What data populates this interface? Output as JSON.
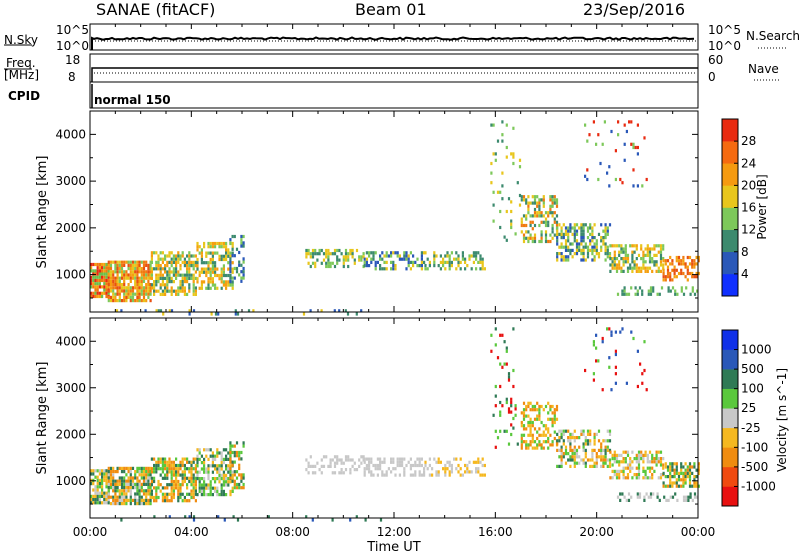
{
  "header": {
    "station": "SANAE (fitACF)",
    "beam": "Beam 01",
    "date": "23/Sep/2016"
  },
  "aux_panels": {
    "nsky_label": "N.Sky",
    "nsearch_label": "N.Search",
    "nsky_ticks": [
      "10^5",
      "10^0"
    ],
    "nsearch_ticks": [
      "10^5",
      "10^0"
    ],
    "freq_label": "Freq.",
    "freq_unit": "[MHz]",
    "freq_ticks": [
      "18",
      "8"
    ],
    "nave_label": "Nave",
    "nave_ticks": [
      "60",
      "0"
    ],
    "cpid_label": "CPID",
    "cpid_value": "normal 150"
  },
  "chart_data": [
    {
      "type": "heatmap",
      "panel": "power",
      "ylabel": "Slant Range [km]",
      "xlabel": "",
      "colorbar_label": "Power [dB]",
      "colorbar_ticks": [
        "4",
        "8",
        "12",
        "16",
        "20",
        "24",
        "28"
      ],
      "colorbar_colors": [
        "#1030ff",
        "#2a58b8",
        "#3c8a6e",
        "#7dc85a",
        "#e8c61c",
        "#f59a10",
        "#f56a10",
        "#e82a10"
      ],
      "yticks": [
        "1000",
        "2000",
        "3000",
        "4000"
      ],
      "ylim": [
        200,
        4500
      ],
      "xlim": [
        0,
        24
      ],
      "blobs": [
        {
          "x0": 0.0,
          "x1": 0.7,
          "y0": 500,
          "y1": 1250,
          "colors": [
            "#f07a10",
            "#e82a10",
            "#f5a010",
            "#6dc04a"
          ],
          "density": 0.9
        },
        {
          "x0": 0.7,
          "x1": 2.4,
          "y0": 450,
          "y1": 1300,
          "colors": [
            "#f07a10",
            "#e85010",
            "#f5a010",
            "#7dc85a",
            "#e8c61c"
          ],
          "density": 0.85
        },
        {
          "x0": 2.4,
          "x1": 4.2,
          "y0": 550,
          "y1": 1500,
          "colors": [
            "#f5a010",
            "#7dc85a",
            "#e8c61c",
            "#3c8a6e"
          ],
          "density": 0.65
        },
        {
          "x0": 4.2,
          "x1": 5.6,
          "y0": 700,
          "y1": 1700,
          "colors": [
            "#7dc85a",
            "#e8c61c",
            "#3c8a6e",
            "#f5a010"
          ],
          "density": 0.6
        },
        {
          "x0": 5.5,
          "x1": 6.1,
          "y0": 850,
          "y1": 1850,
          "colors": [
            "#3c8a6e",
            "#2a58b8",
            "#7dc85a"
          ],
          "density": 0.45
        },
        {
          "x0": 8.5,
          "x1": 10.8,
          "y0": 1150,
          "y1": 1550,
          "colors": [
            "#7dc85a",
            "#e8c61c",
            "#3c8a6e"
          ],
          "density": 0.45
        },
        {
          "x0": 10.8,
          "x1": 13.2,
          "y0": 1100,
          "y1": 1500,
          "colors": [
            "#7dc85a",
            "#e8c61c",
            "#3c8a6e",
            "#2a58b8"
          ],
          "density": 0.5
        },
        {
          "x0": 13.2,
          "x1": 15.6,
          "y0": 1100,
          "y1": 1500,
          "colors": [
            "#7dc85a",
            "#3c8a6e",
            "#e8c61c"
          ],
          "density": 0.45
        },
        {
          "x0": 15.8,
          "x1": 17.0,
          "y0": 1700,
          "y1": 4300,
          "colors": [
            "#7dc85a",
            "#3c8a6e",
            "#e8c61c"
          ],
          "density": 0.08
        },
        {
          "x0": 17.0,
          "x1": 18.4,
          "y0": 1700,
          "y1": 2700,
          "colors": [
            "#f07a10",
            "#e8c61c",
            "#7dc85a",
            "#3c8a6e"
          ],
          "density": 0.5
        },
        {
          "x0": 18.4,
          "x1": 20.5,
          "y0": 1300,
          "y1": 2100,
          "colors": [
            "#7dc85a",
            "#3c8a6e",
            "#e8c61c",
            "#2a58b8"
          ],
          "density": 0.55
        },
        {
          "x0": 20.5,
          "x1": 22.6,
          "y0": 1050,
          "y1": 1650,
          "colors": [
            "#f5a010",
            "#e8c61c",
            "#7dc85a",
            "#3c8a6e"
          ],
          "density": 0.55
        },
        {
          "x0": 22.6,
          "x1": 24.0,
          "y0": 900,
          "y1": 1400,
          "colors": [
            "#f07a10",
            "#e85010",
            "#f5a010"
          ],
          "density": 0.55
        },
        {
          "x0": 19.5,
          "x1": 22.0,
          "y0": 2900,
          "y1": 4300,
          "colors": [
            "#7dc85a",
            "#e82a10",
            "#2a58b8"
          ],
          "density": 0.05
        },
        {
          "x0": 20.8,
          "x1": 24.0,
          "y0": 550,
          "y1": 750,
          "colors": [
            "#7dc85a",
            "#3c8a6e"
          ],
          "density": 0.3
        },
        {
          "x0": 0.5,
          "x1": 11.5,
          "y0": 180,
          "y1": 260,
          "colors": [
            "#2a58b8",
            "#3c8a6e",
            "#e8c61c"
          ],
          "density": 0.08
        }
      ]
    },
    {
      "type": "heatmap",
      "panel": "velocity",
      "ylabel": "Slant Range [km]",
      "xlabel": "Time UT",
      "colorbar_label": "Velocity [m s^-1]",
      "colorbar_ticks": [
        "-1000",
        "-500",
        "-100",
        "-25",
        "25",
        "100",
        "500",
        "1000"
      ],
      "colorbar_colors": [
        "#e81010",
        "#f04a10",
        "#f08c10",
        "#f5b820",
        "#c8c8c8",
        "#5ac83c",
        "#2f7a55",
        "#2a58b8",
        "#1030e8"
      ],
      "yticks": [
        "1000",
        "2000",
        "3000",
        "4000"
      ],
      "xticks": [
        "00:00",
        "04:00",
        "08:00",
        "12:00",
        "16:00",
        "20:00",
        "00:00"
      ],
      "ylim": [
        200,
        4500
      ],
      "xlim": [
        0,
        24
      ],
      "blobs": [
        {
          "x0": 0.0,
          "x1": 0.7,
          "y0": 550,
          "y1": 1250,
          "colors": [
            "#c8c8c8",
            "#f5b820",
            "#5ac83c",
            "#2f7a55"
          ],
          "density": 0.85
        },
        {
          "x0": 0.7,
          "x1": 2.4,
          "y0": 500,
          "y1": 1300,
          "colors": [
            "#f08c10",
            "#f5b820",
            "#5ac83c",
            "#c8c8c8",
            "#2f7a55"
          ],
          "density": 0.8
        },
        {
          "x0": 2.4,
          "x1": 4.2,
          "y0": 550,
          "y1": 1500,
          "colors": [
            "#f5b820",
            "#f08c10",
            "#5ac83c",
            "#2f7a55"
          ],
          "density": 0.65
        },
        {
          "x0": 4.2,
          "x1": 5.6,
          "y0": 700,
          "y1": 1700,
          "colors": [
            "#2f7a55",
            "#5ac83c",
            "#f5b820",
            "#c8c8c8"
          ],
          "density": 0.6
        },
        {
          "x0": 5.5,
          "x1": 6.1,
          "y0": 850,
          "y1": 1850,
          "colors": [
            "#2f7a55",
            "#5ac83c",
            "#f08c10"
          ],
          "density": 0.45
        },
        {
          "x0": 8.5,
          "x1": 10.8,
          "y0": 1150,
          "y1": 1550,
          "colors": [
            "#c8c8c8"
          ],
          "density": 0.45
        },
        {
          "x0": 10.8,
          "x1": 13.2,
          "y0": 1100,
          "y1": 1500,
          "colors": [
            "#c8c8c8"
          ],
          "density": 0.5
        },
        {
          "x0": 13.2,
          "x1": 15.6,
          "y0": 1100,
          "y1": 1500,
          "colors": [
            "#c8c8c8",
            "#f5b820"
          ],
          "density": 0.45
        },
        {
          "x0": 15.8,
          "x1": 17.0,
          "y0": 1700,
          "y1": 4300,
          "colors": [
            "#5ac83c",
            "#2f7a55",
            "#e81010"
          ],
          "density": 0.08
        },
        {
          "x0": 17.0,
          "x1": 18.4,
          "y0": 1700,
          "y1": 2700,
          "colors": [
            "#f08c10",
            "#5ac83c",
            "#f5b820"
          ],
          "density": 0.5
        },
        {
          "x0": 18.4,
          "x1": 20.5,
          "y0": 1300,
          "y1": 2100,
          "colors": [
            "#f08c10",
            "#5ac83c",
            "#f5b820",
            "#2f7a55",
            "#c8c8c8"
          ],
          "density": 0.55
        },
        {
          "x0": 20.5,
          "x1": 22.6,
          "y0": 1050,
          "y1": 1650,
          "colors": [
            "#f5b820",
            "#f08c10",
            "#5ac83c",
            "#c8c8c8"
          ],
          "density": 0.55
        },
        {
          "x0": 22.6,
          "x1": 24.0,
          "y0": 900,
          "y1": 1400,
          "colors": [
            "#5ac83c",
            "#2f7a55",
            "#f5b820",
            "#f08c10"
          ],
          "density": 0.55
        },
        {
          "x0": 19.5,
          "x1": 22.0,
          "y0": 2900,
          "y1": 4300,
          "colors": [
            "#5ac83c",
            "#e81010",
            "#2a58b8"
          ],
          "density": 0.05
        },
        {
          "x0": 20.8,
          "x1": 24.0,
          "y0": 550,
          "y1": 750,
          "colors": [
            "#c8c8c8",
            "#2f7a55"
          ],
          "density": 0.3
        },
        {
          "x0": 0.5,
          "x1": 11.5,
          "y0": 180,
          "y1": 260,
          "colors": [
            "#2a58b8",
            "#2f7a55"
          ],
          "density": 0.08
        }
      ]
    }
  ]
}
